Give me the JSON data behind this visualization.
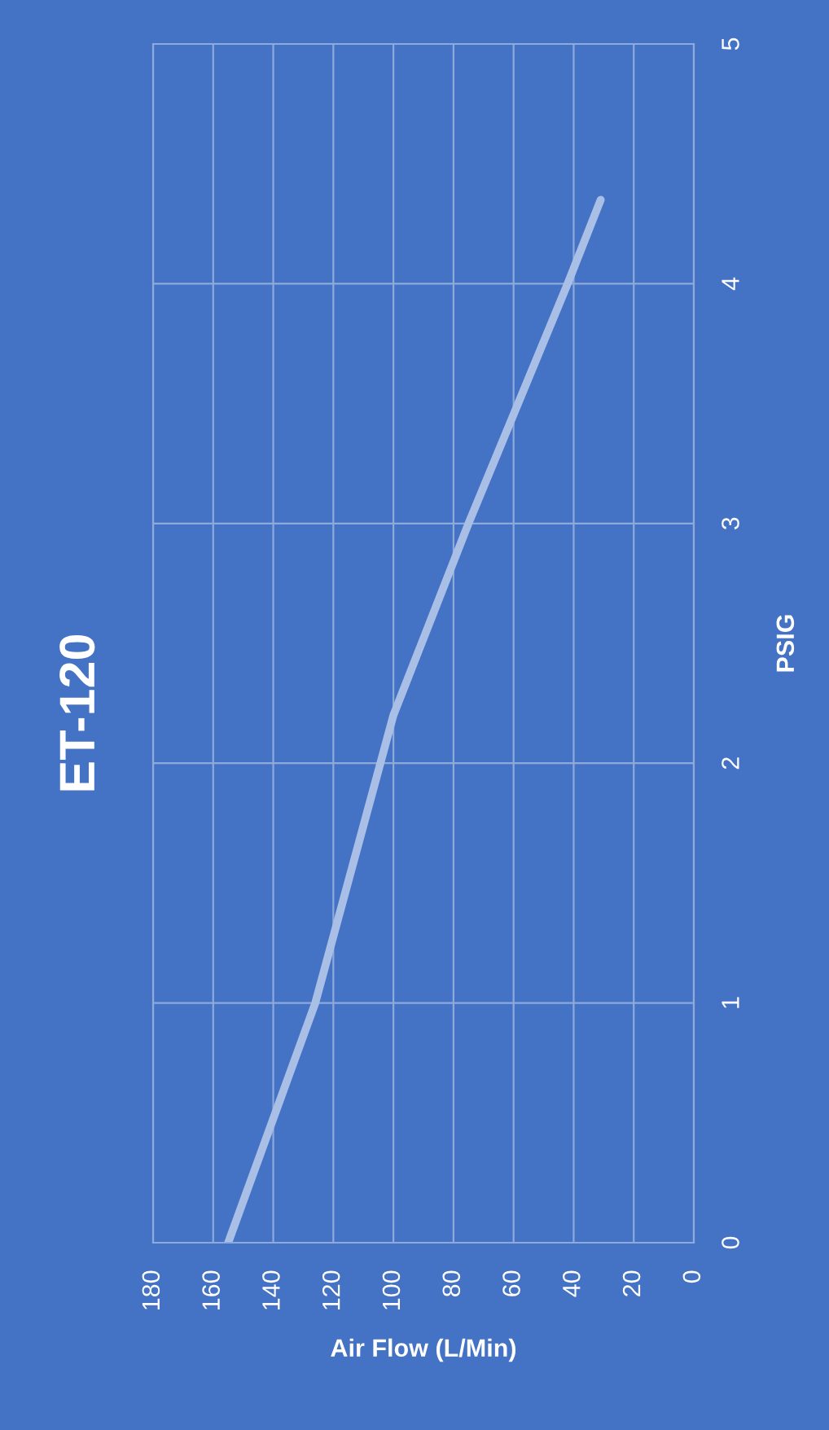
{
  "chart_data": {
    "type": "line",
    "title": "ET-120",
    "xlabel": "Air Flow (L/Min)",
    "ylabel": "PSIG",
    "x": [
      155,
      126,
      100,
      75,
      42,
      31
    ],
    "series": [
      {
        "color": "#a9bfe6",
        "values": [
          0,
          1,
          2.2,
          3,
          4,
          4.35
        ]
      }
    ],
    "xlim": [
      180,
      0
    ],
    "xticks": [
      0,
      20,
      40,
      60,
      80,
      100,
      120,
      140,
      160,
      180
    ],
    "ylim": [
      0,
      5
    ],
    "yticks": [
      0,
      1,
      2,
      3,
      4,
      5
    ],
    "grid": true,
    "marker": "none",
    "line_style": "solid"
  }
}
